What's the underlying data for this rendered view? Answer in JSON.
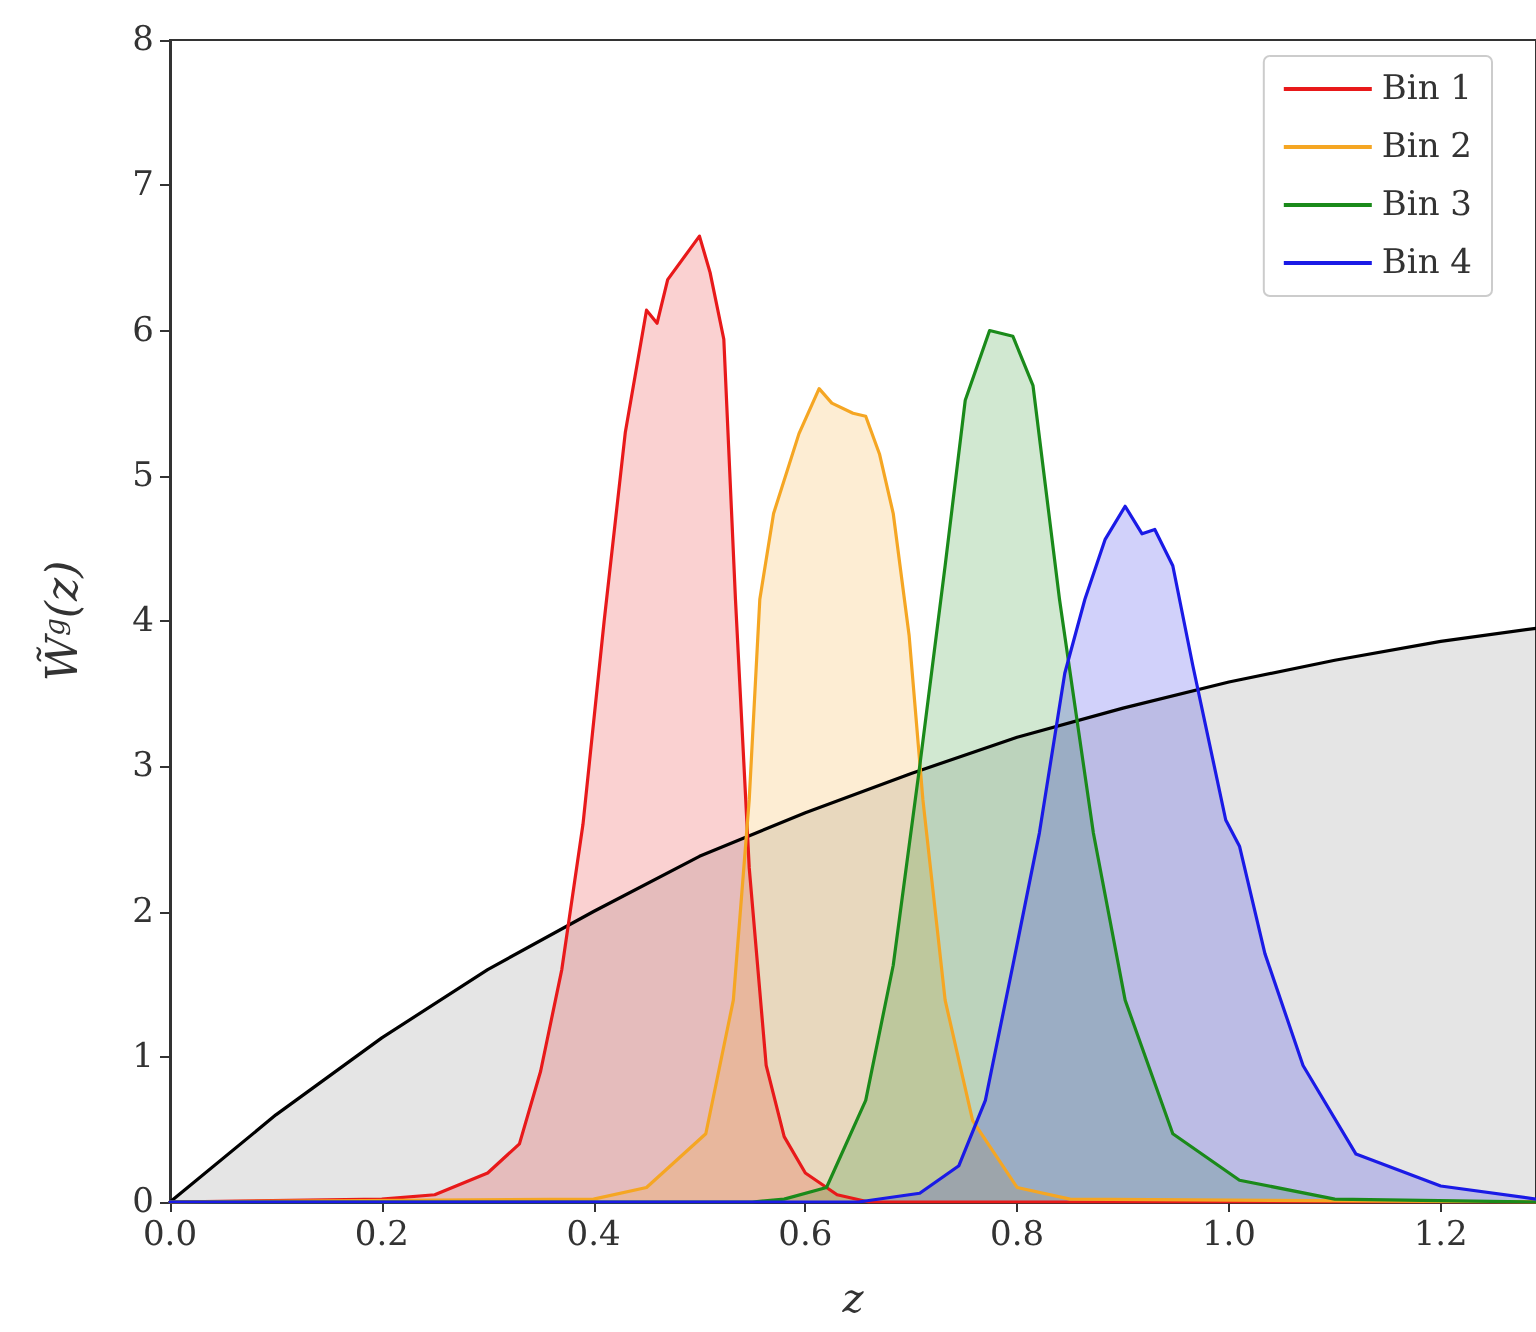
{
  "chart_data": {
    "type": "area",
    "xlabel": "z",
    "ylabel": "W̃$^{g}$(z)",
    "xlim": [
      0,
      1.29
    ],
    "ylim": [
      0,
      8
    ],
    "xticks": [
      {
        "value": 0,
        "label": "0.0"
      },
      0.2,
      0.4,
      0.6,
      0.8,
      {
        "value": 1,
        "label": "1.0"
      },
      1.2
    ],
    "yticks": [
      0,
      1,
      2,
      3,
      4,
      5,
      6,
      7,
      8
    ],
    "grid": false,
    "legend": "top right",
    "marker": "none",
    "line_style": "solid",
    "series": [
      {
        "color": "#000000",
        "x": [
          0,
          0.1,
          0.2,
          0.3,
          0.4,
          0.5,
          0.6,
          0.7,
          0.8,
          0.9,
          1.0,
          1.1,
          1.2,
          1.29
        ],
        "values": [
          0,
          0.6,
          1.13,
          1.6,
          2.0,
          2.38,
          2.68,
          2.95,
          3.2,
          3.4,
          3.58,
          3.73,
          3.86,
          3.95
        ]
      },
      {
        "name": "Bin 1",
        "color": "#e8191a",
        "x": [
          0,
          0.2,
          0.25,
          0.3,
          0.33,
          0.35,
          0.37,
          0.39,
          0.41,
          0.43,
          0.45,
          0.46,
          0.47,
          0.49,
          0.5,
          0.51,
          0.523,
          0.534,
          0.547,
          0.563,
          0.58,
          0.6,
          0.63,
          0.66,
          1.29
        ],
        "values": [
          0,
          0.02,
          0.05,
          0.2,
          0.4,
          0.9,
          1.6,
          2.6,
          4.0,
          5.3,
          6.14,
          6.05,
          6.35,
          6.55,
          6.65,
          6.4,
          5.94,
          4.15,
          2.3,
          0.94,
          0.45,
          0.2,
          0.05,
          0,
          0
        ]
      },
      {
        "name": "Bin 2",
        "color": "#f5a623",
        "x": [
          0,
          0.4,
          0.45,
          0.506,
          0.532,
          0.547,
          0.557,
          0.57,
          0.594,
          0.613,
          0.625,
          0.645,
          0.657,
          0.67,
          0.683,
          0.698,
          0.711,
          0.732,
          0.758,
          0.8,
          0.85,
          1.29
        ],
        "values": [
          0,
          0.02,
          0.1,
          0.47,
          1.39,
          2.77,
          4.15,
          4.74,
          5.29,
          5.6,
          5.5,
          5.43,
          5.41,
          5.15,
          4.74,
          3.9,
          2.77,
          1.39,
          0.56,
          0.1,
          0.02,
          0
        ]
      },
      {
        "name": "Bin 3",
        "color": "#1a8a1a",
        "x": [
          0,
          0.55,
          0.58,
          0.62,
          0.657,
          0.683,
          0.708,
          0.732,
          0.751,
          0.774,
          0.796,
          0.815,
          0.84,
          0.872,
          0.902,
          0.947,
          1.01,
          1.1,
          1.29
        ],
        "values": [
          0,
          0,
          0.02,
          0.1,
          0.7,
          1.63,
          3.0,
          4.38,
          5.52,
          6.0,
          5.96,
          5.62,
          4.15,
          2.54,
          1.39,
          0.47,
          0.15,
          0.02,
          0
        ]
      },
      {
        "name": "Bin 4",
        "color": "#1a1ae6",
        "x": [
          0,
          0.65,
          0.708,
          0.745,
          0.77,
          0.796,
          0.821,
          0.845,
          0.864,
          0.883,
          0.902,
          0.918,
          0.93,
          0.947,
          0.966,
          0.997,
          1.01,
          1.034,
          1.07,
          1.12,
          1.2,
          1.29
        ],
        "values": [
          0,
          0,
          0.06,
          0.25,
          0.7,
          1.63,
          2.54,
          3.64,
          4.15,
          4.56,
          4.79,
          4.6,
          4.63,
          4.38,
          3.69,
          2.63,
          2.45,
          1.71,
          0.94,
          0.33,
          0.11,
          0.02
        ]
      }
    ]
  }
}
